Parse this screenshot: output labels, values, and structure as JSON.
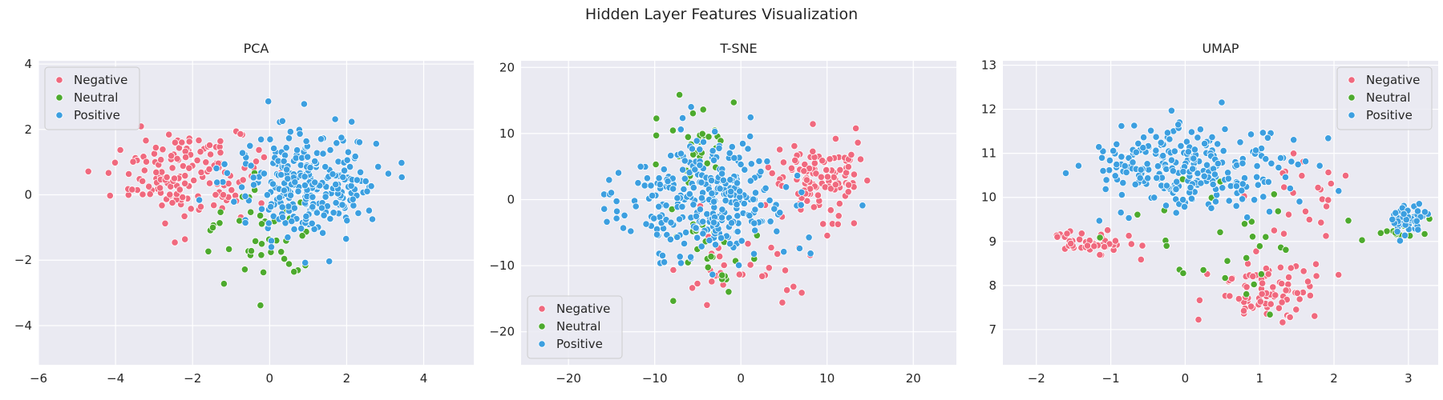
{
  "figure": {
    "title": "Hidden Layer Features Visualization"
  },
  "legend": {
    "entries": [
      {
        "label": "Negative",
        "color": "#f0697e"
      },
      {
        "label": "Neutral",
        "color": "#4daa2e"
      },
      {
        "label": "Positive",
        "color": "#3c9fe0"
      }
    ]
  },
  "chart_data": [
    {
      "type": "scatter",
      "title": "PCA",
      "xlim": [
        -6,
        5.3
      ],
      "ylim": [
        -5.2,
        4.1
      ],
      "xticks": [
        -6,
        -4,
        -2,
        0,
        2,
        4
      ],
      "yticks": [
        -4,
        -2,
        0,
        2,
        4
      ],
      "grid": true,
      "legend_position": "top-left",
      "series": [
        {
          "name": "Negative",
          "n": 150,
          "seed": 11,
          "clusters": [
            [
              -2.2,
              0.6,
              1.6,
              1.2,
              1.0
            ]
          ]
        },
        {
          "name": "Neutral",
          "n": 45,
          "seed": 23,
          "clusters": [
            [
              -0.3,
              -1.2,
              1.5,
              1.4,
              1.0
            ]
          ]
        },
        {
          "name": "Positive",
          "n": 280,
          "seed": 37,
          "clusters": [
            [
              1.0,
              0.3,
              1.6,
              1.5,
              1.0
            ]
          ]
        }
      ]
    },
    {
      "type": "scatter",
      "title": "T-SNE",
      "xlim": [
        -25.5,
        25
      ],
      "ylim": [
        -25,
        21
      ],
      "xticks": [
        -20,
        -10,
        0,
        10,
        20
      ],
      "yticks": [
        -20,
        -10,
        0,
        10,
        20
      ],
      "grid": true,
      "legend_position": "bottom-left",
      "series": [
        {
          "name": "Negative",
          "n": 150,
          "seed": 41,
          "clusters": [
            [
              9,
              3,
              5,
              6,
              0.75
            ],
            [
              0,
              -10,
              8,
              5,
              0.25
            ]
          ]
        },
        {
          "name": "Neutral",
          "n": 55,
          "seed": 53,
          "clusters": [
            [
              -6,
              8,
              4,
              6,
              0.5
            ],
            [
              -4,
              -8,
              5,
              5,
              0.5
            ]
          ]
        },
        {
          "name": "Positive",
          "n": 300,
          "seed": 67,
          "clusters": [
            [
              -4,
              0,
              8,
              8,
              1.0
            ]
          ]
        }
      ]
    },
    {
      "type": "scatter",
      "title": "UMAP",
      "xlim": [
        -2.45,
        3.4
      ],
      "ylim": [
        6.2,
        13.1
      ],
      "xticks": [
        -2,
        -1,
        0,
        1,
        2,
        3
      ],
      "yticks": [
        7,
        8,
        9,
        10,
        11,
        12,
        13
      ],
      "grid": true,
      "legend_position": "top-right",
      "series": [
        {
          "name": "Negative",
          "n": 150,
          "seed": 71,
          "clusters": [
            [
              1.1,
              7.9,
              0.7,
              0.7,
              0.55
            ],
            [
              -1.2,
              9.0,
              0.5,
              0.35,
              0.3
            ],
            [
              1.6,
              10.0,
              0.6,
              0.8,
              0.15
            ]
          ]
        },
        {
          "name": "Neutral",
          "n": 50,
          "seed": 83,
          "clusters": [
            [
              0.8,
              9.2,
              1.4,
              1.3,
              0.7
            ],
            [
              3.0,
              9.3,
              0.25,
              0.25,
              0.3
            ]
          ]
        },
        {
          "name": "Positive",
          "n": 300,
          "seed": 97,
          "clusters": [
            [
              0.0,
              10.7,
              1.2,
              0.9,
              0.85
            ],
            [
              3.0,
              9.5,
              0.25,
              0.4,
              0.15
            ]
          ]
        }
      ]
    }
  ]
}
